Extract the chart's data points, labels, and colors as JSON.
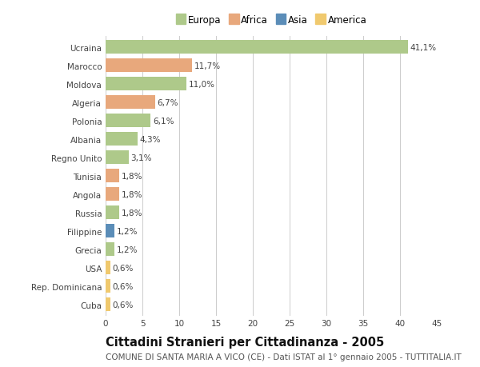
{
  "countries": [
    "Ucraina",
    "Marocco",
    "Moldova",
    "Algeria",
    "Polonia",
    "Albania",
    "Regno Unito",
    "Tunisia",
    "Angola",
    "Russia",
    "Filippine",
    "Grecia",
    "USA",
    "Rep. Dominicana",
    "Cuba"
  ],
  "values": [
    41.1,
    11.7,
    11.0,
    6.7,
    6.1,
    4.3,
    3.1,
    1.8,
    1.8,
    1.8,
    1.2,
    1.2,
    0.6,
    0.6,
    0.6
  ],
  "labels": [
    "41,1%",
    "11,7%",
    "11,0%",
    "6,7%",
    "6,1%",
    "4,3%",
    "3,1%",
    "1,8%",
    "1,8%",
    "1,8%",
    "1,2%",
    "1,2%",
    "0,6%",
    "0,6%",
    "0,6%"
  ],
  "continents": [
    "Europa",
    "Africa",
    "Europa",
    "Africa",
    "Europa",
    "Europa",
    "Europa",
    "Africa",
    "Africa",
    "Europa",
    "Asia",
    "Europa",
    "America",
    "America",
    "America"
  ],
  "colors": {
    "Europa": "#aec98a",
    "Africa": "#e8a87c",
    "Asia": "#5b8db8",
    "America": "#f0c96e"
  },
  "legend_order": [
    "Europa",
    "Africa",
    "Asia",
    "America"
  ],
  "title": "Cittadini Stranieri per Cittadinanza - 2005",
  "subtitle": "COMUNE DI SANTA MARIA A VICO (CE) - Dati ISTAT al 1° gennaio 2005 - TUTTITALIA.IT",
  "xlim": [
    0,
    45
  ],
  "xticks": [
    0,
    5,
    10,
    15,
    20,
    25,
    30,
    35,
    40,
    45
  ],
  "background_color": "#ffffff",
  "grid_color": "#cccccc",
  "bar_height": 0.75,
  "title_fontsize": 10.5,
  "subtitle_fontsize": 7.5,
  "label_fontsize": 7.5,
  "tick_fontsize": 7.5,
  "legend_fontsize": 8.5
}
